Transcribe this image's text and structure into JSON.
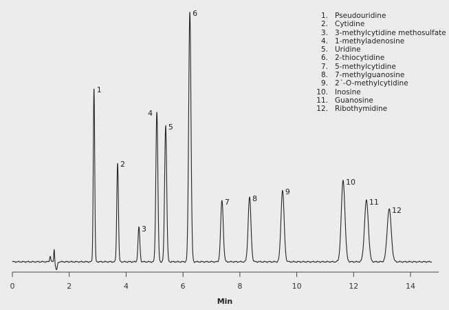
{
  "chart_data": {
    "type": "line",
    "title": "",
    "xlabel": "Min",
    "ylabel": "",
    "xlim": [
      0,
      15
    ],
    "xticks": [
      0,
      2,
      4,
      6,
      8,
      10,
      12,
      14
    ],
    "grid": false,
    "legend_placement": "top-right",
    "line_color": "#222222",
    "background_color": "#ececec",
    "peaks": [
      {
        "label": "1",
        "time": 2.87,
        "height": 252
      },
      {
        "label": "2",
        "time": 3.7,
        "height": 144
      },
      {
        "label": "3",
        "time": 4.45,
        "height": 50
      },
      {
        "label": "4",
        "time": 5.08,
        "height": 218
      },
      {
        "label": "5",
        "time": 5.39,
        "height": 198
      },
      {
        "label": "6",
        "time": 6.24,
        "height": 363
      },
      {
        "label": "7",
        "time": 7.37,
        "height": 89
      },
      {
        "label": "8",
        "time": 8.34,
        "height": 94
      },
      {
        "label": "9",
        "time": 9.5,
        "height": 104
      },
      {
        "label": "10",
        "time": 11.63,
        "height": 118
      },
      {
        "label": "11",
        "time": 12.45,
        "height": 89
      },
      {
        "label": "12",
        "time": 13.25,
        "height": 77
      }
    ],
    "legend": [
      {
        "num": "1.",
        "name": "Pseudouridine"
      },
      {
        "num": "2.",
        "name": "Cytidine"
      },
      {
        "num": "3.",
        "name": "3-methylcytidine methosulfate"
      },
      {
        "num": "4.",
        "name": "1-methyladenosine"
      },
      {
        "num": "5.",
        "name": "Uridine"
      },
      {
        "num": "6.",
        "name": "2-thiocytidine"
      },
      {
        "num": "7.",
        "name": "5-methylcytidine"
      },
      {
        "num": "8.",
        "name": "7-methylguanosine"
      },
      {
        "num": "9.",
        "name": "2´-O-methylcytidine"
      },
      {
        "num": "10.",
        "name": "Inosine"
      },
      {
        "num": "11.",
        "name": "Guanosine"
      },
      {
        "num": "12.",
        "name": "Ribothymidine"
      }
    ]
  }
}
